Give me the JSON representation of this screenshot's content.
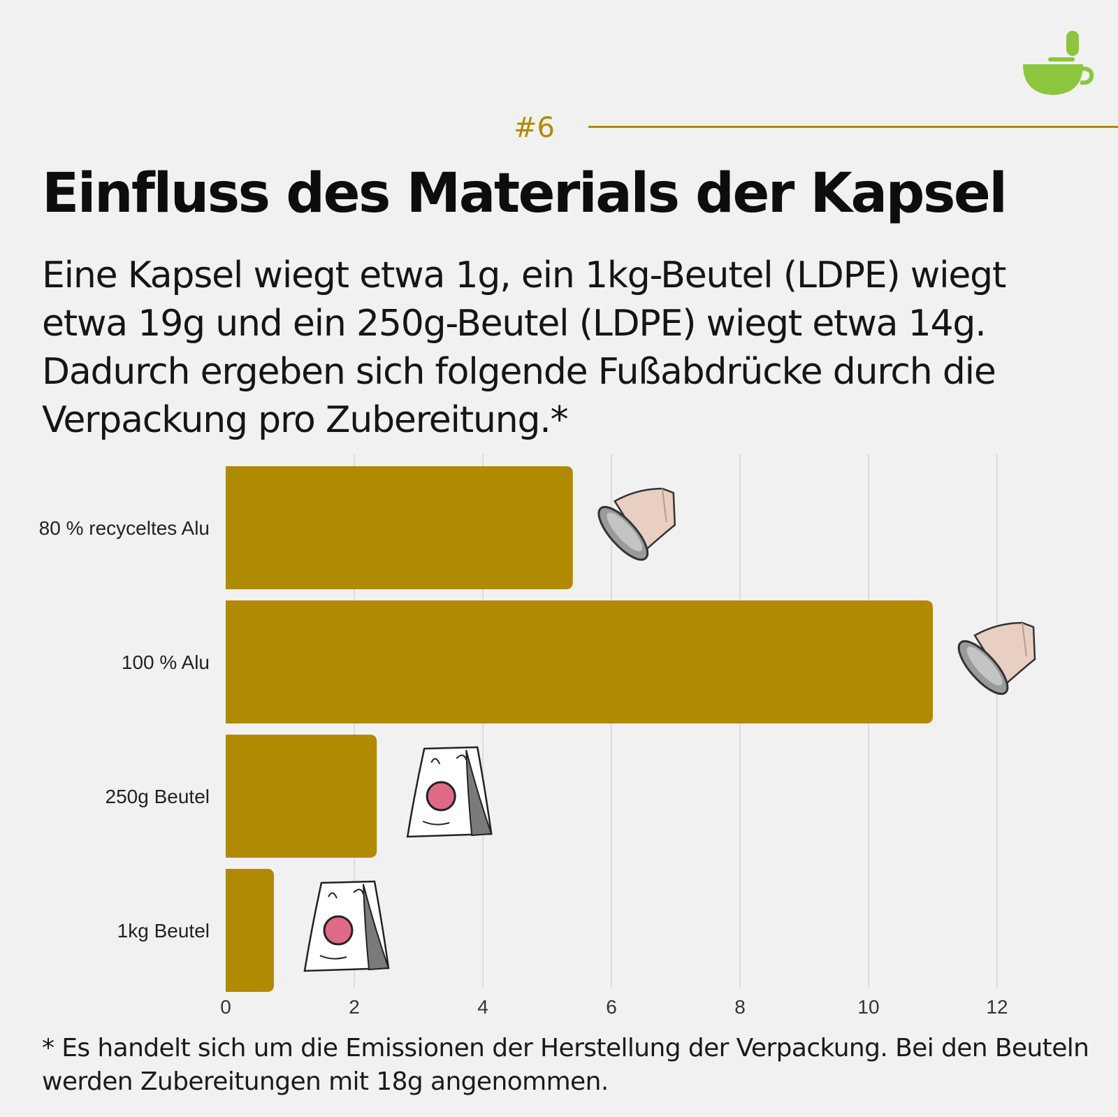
{
  "header": {
    "number_tag": "#6",
    "title": "Einfluss des Materials der Kapsel",
    "intro": "Eine Kapsel wiegt etwa 1g, ein 1kg-Beutel (LDPE) wiegt etwa 19g und ein 250g-Beutel (LDPE) wiegt etwa 14g. Dadurch ergeben sich folgende Fußabdrücke durch die Verpackung pro Zubereitung.*"
  },
  "footnote": "* Es handelt sich um die Emissionen der Herstellung der Verpackung. Bei den Beuteln werden Zubereitungen mit 18g angenommen.",
  "colors": {
    "bar": "#b08a00",
    "accent": "#b08a00",
    "logo": "#8cc63f",
    "grid": "#dddbdb"
  },
  "icons": [
    "coffee-bowl-logo-icon",
    "coffee-capsule-icon",
    "coffee-bag-icon"
  ],
  "chart_data": {
    "type": "bar",
    "orientation": "horizontal",
    "categories": [
      "80 % recyceltes Alu",
      "100 % Alu",
      "250g Beutel",
      "1kg Beutel"
    ],
    "values": [
      5.4,
      11.0,
      2.35,
      0.75
    ],
    "category_icons": [
      "coffee-capsule-icon",
      "coffee-capsule-icon",
      "coffee-bag-icon",
      "coffee-bag-icon"
    ],
    "xlim": [
      0,
      12
    ],
    "xticks": [
      0,
      2,
      4,
      6,
      8,
      10,
      12
    ],
    "grid": "vertical",
    "xlabel": "",
    "ylabel": ""
  }
}
